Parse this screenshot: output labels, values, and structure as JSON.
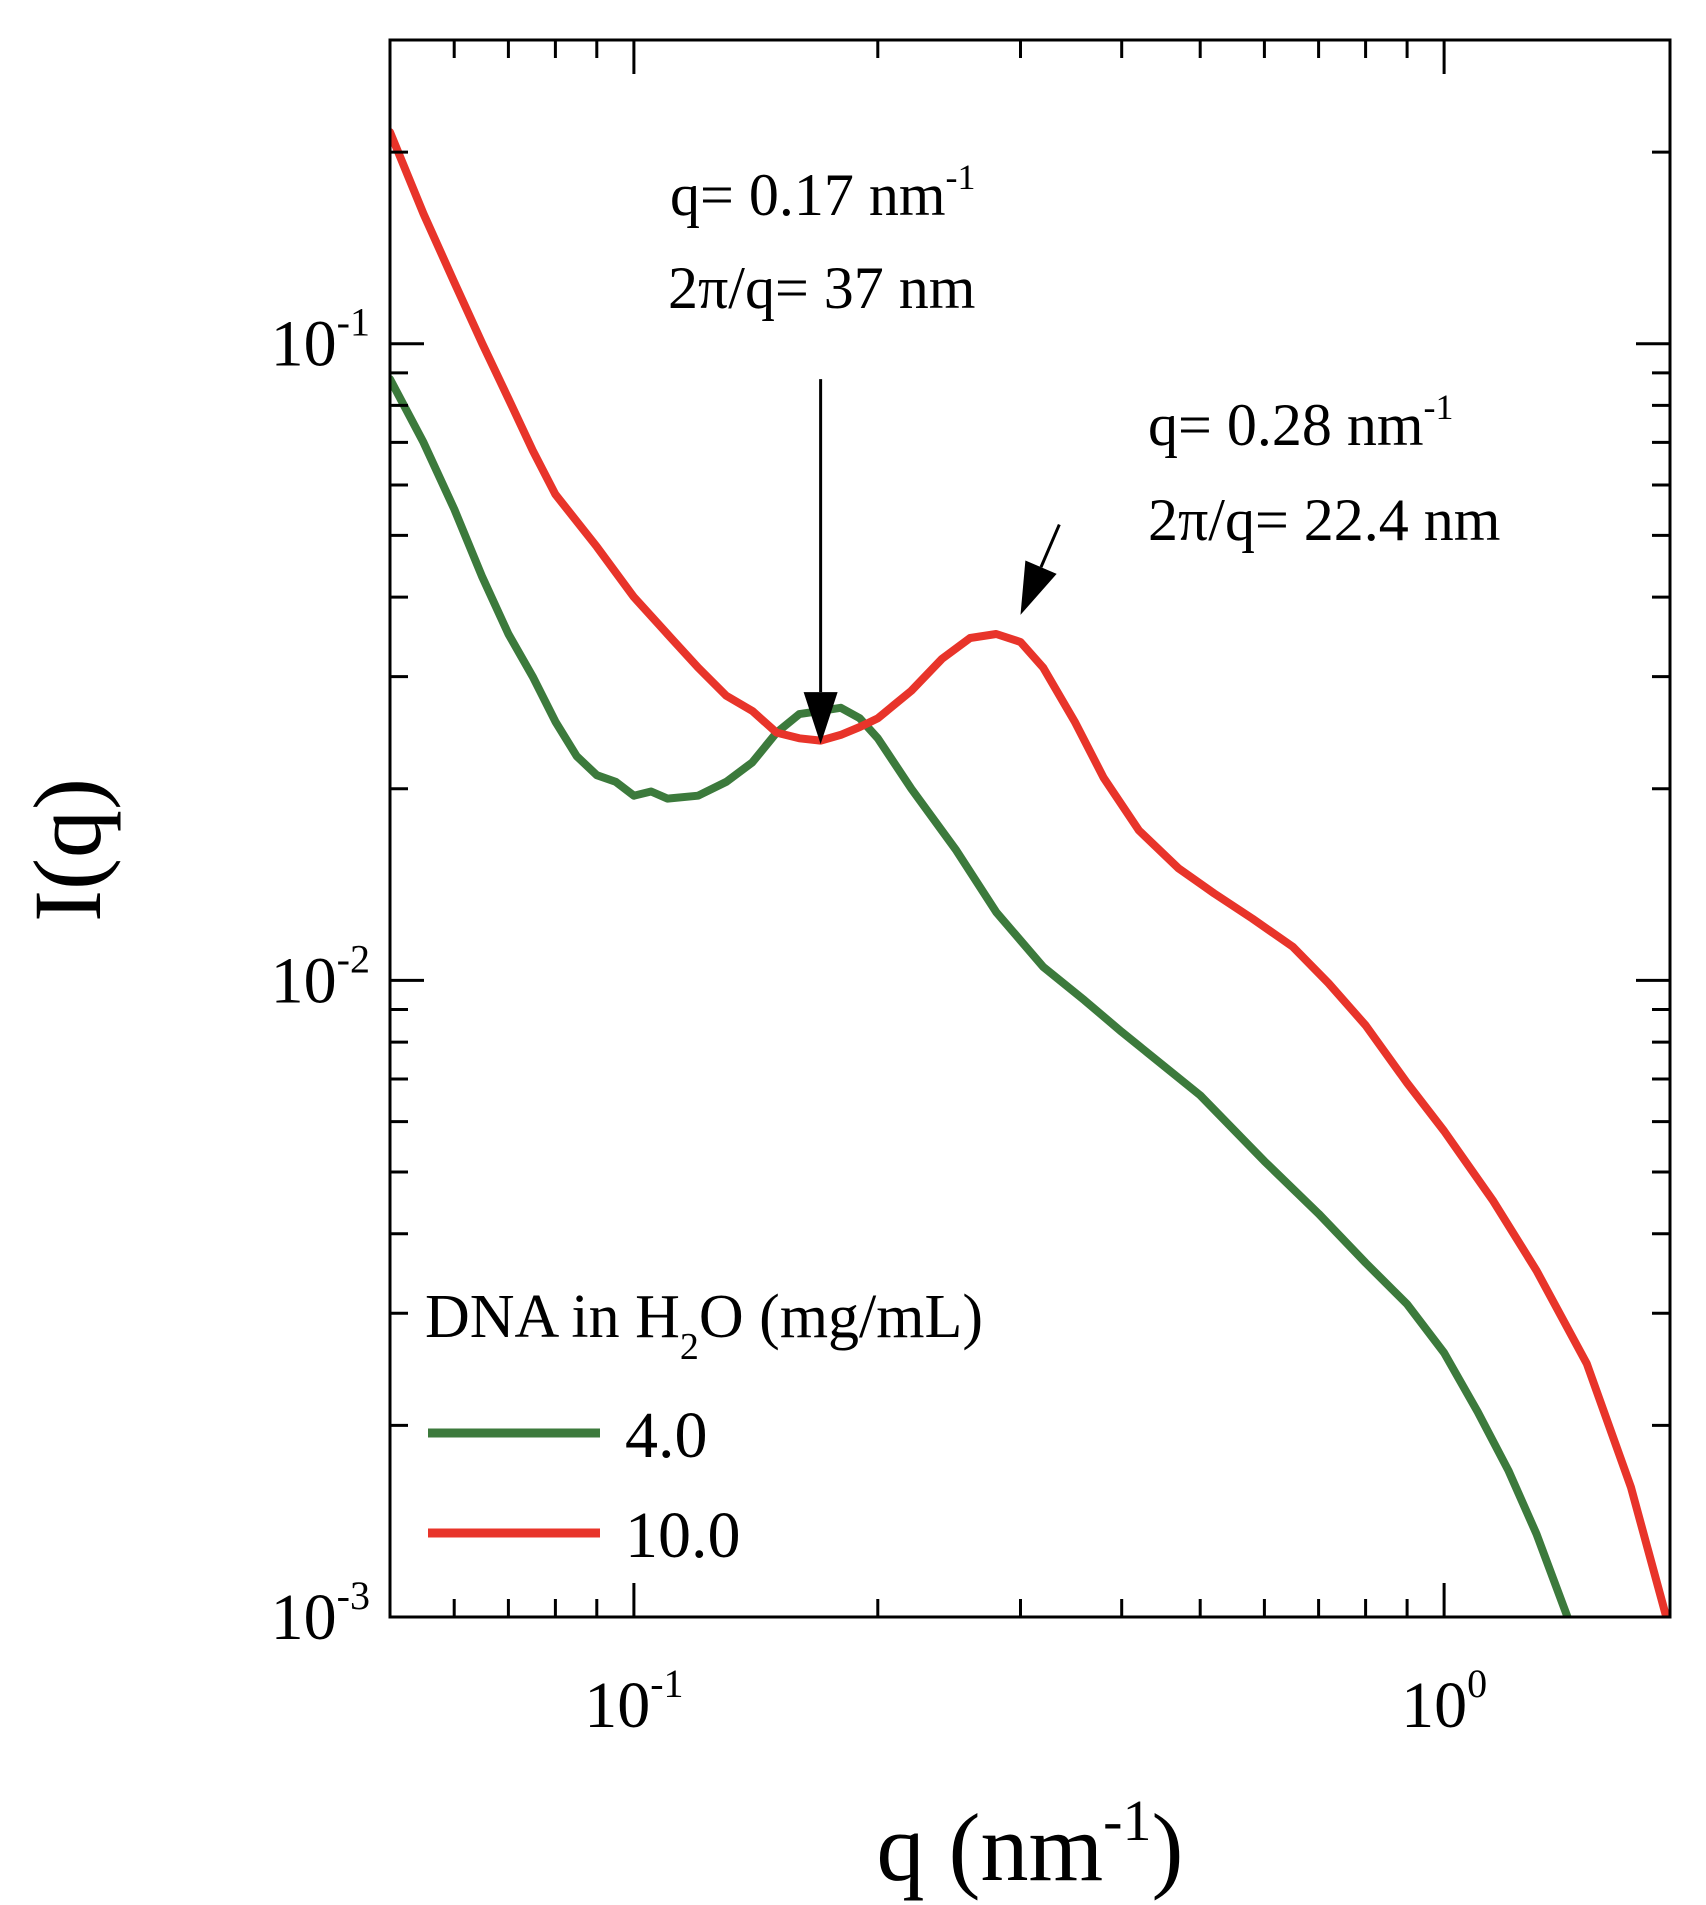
{
  "chart_data": {
    "type": "line",
    "title": "",
    "xlabel": {
      "base": "q (nm",
      "sup": "-1",
      "end": ")"
    },
    "ylabel": "I(q)",
    "xscale": "log",
    "yscale": "log",
    "xlim": [
      0.05,
      1.9
    ],
    "ylim": [
      0.001,
      0.3
    ],
    "grid": false,
    "x_ticks": [
      {
        "value": 0.1,
        "base": "10",
        "exp": "-1"
      },
      {
        "value": 1.0,
        "base": "10",
        "exp": "0"
      }
    ],
    "y_ticks": [
      {
        "value": 0.001,
        "base": "10",
        "exp": "-3"
      },
      {
        "value": 0.01,
        "base": "10",
        "exp": "-2"
      },
      {
        "value": 0.1,
        "base": "10",
        "exp": "-1"
      }
    ],
    "legend": {
      "title": {
        "pre": "DNA in H",
        "sub": "2",
        "post": "O (mg/mL)"
      },
      "placement": "bottom-left"
    },
    "annotations": [
      {
        "line1": {
          "text": "q= 0.17 nm",
          "sup": "-1"
        },
        "line2": "2π/q= 37 nm",
        "arrow_from": [
          0.17,
          0.088
        ],
        "arrow_to": [
          0.17,
          0.0235
        ]
      },
      {
        "line1": {
          "text": "q= 0.28 nm",
          "sup": "-1"
        },
        "line2": "2π/q= 22.4 nm",
        "arrow_from": [
          0.335,
          0.052
        ],
        "arrow_to": [
          0.3,
          0.0375
        ]
      }
    ],
    "series": [
      {
        "name": "4.0",
        "color": "#3c7a3c",
        "x": [
          0.05,
          0.055,
          0.06,
          0.065,
          0.07,
          0.075,
          0.08,
          0.085,
          0.09,
          0.095,
          0.1,
          0.105,
          0.11,
          0.12,
          0.13,
          0.14,
          0.15,
          0.16,
          0.17,
          0.18,
          0.19,
          0.2,
          0.22,
          0.25,
          0.28,
          0.32,
          0.36,
          0.4,
          0.5,
          0.6,
          0.7,
          0.8,
          0.9,
          1.0,
          1.1,
          1.2,
          1.3,
          1.42
        ],
        "y": [
          0.088,
          0.07,
          0.055,
          0.043,
          0.035,
          0.03,
          0.0255,
          0.0225,
          0.021,
          0.0205,
          0.0195,
          0.0198,
          0.0193,
          0.0195,
          0.0205,
          0.022,
          0.0245,
          0.0262,
          0.0265,
          0.0268,
          0.0258,
          0.024,
          0.02,
          0.016,
          0.0128,
          0.0105,
          0.0093,
          0.0083,
          0.0066,
          0.0052,
          0.0043,
          0.0036,
          0.0031,
          0.0026,
          0.0021,
          0.0017,
          0.00135,
          0.001
        ]
      },
      {
        "name": "10.0",
        "color": "#e8342a",
        "x": [
          0.05,
          0.055,
          0.06,
          0.065,
          0.07,
          0.075,
          0.08,
          0.09,
          0.1,
          0.11,
          0.12,
          0.13,
          0.14,
          0.15,
          0.16,
          0.17,
          0.18,
          0.19,
          0.2,
          0.22,
          0.24,
          0.26,
          0.28,
          0.3,
          0.32,
          0.35,
          0.38,
          0.42,
          0.47,
          0.52,
          0.58,
          0.65,
          0.72,
          0.8,
          0.9,
          1.0,
          1.15,
          1.3,
          1.5,
          1.7,
          1.88
        ],
        "y": [
          0.215,
          0.16,
          0.125,
          0.1,
          0.082,
          0.068,
          0.058,
          0.048,
          0.04,
          0.035,
          0.031,
          0.028,
          0.0265,
          0.0245,
          0.024,
          0.0238,
          0.0243,
          0.025,
          0.0258,
          0.0285,
          0.032,
          0.0345,
          0.035,
          0.034,
          0.031,
          0.0255,
          0.0208,
          0.0172,
          0.015,
          0.0137,
          0.0125,
          0.0113,
          0.0099,
          0.0085,
          0.0069,
          0.0058,
          0.0045,
          0.0035,
          0.0025,
          0.0016,
          0.001
        ]
      }
    ]
  }
}
